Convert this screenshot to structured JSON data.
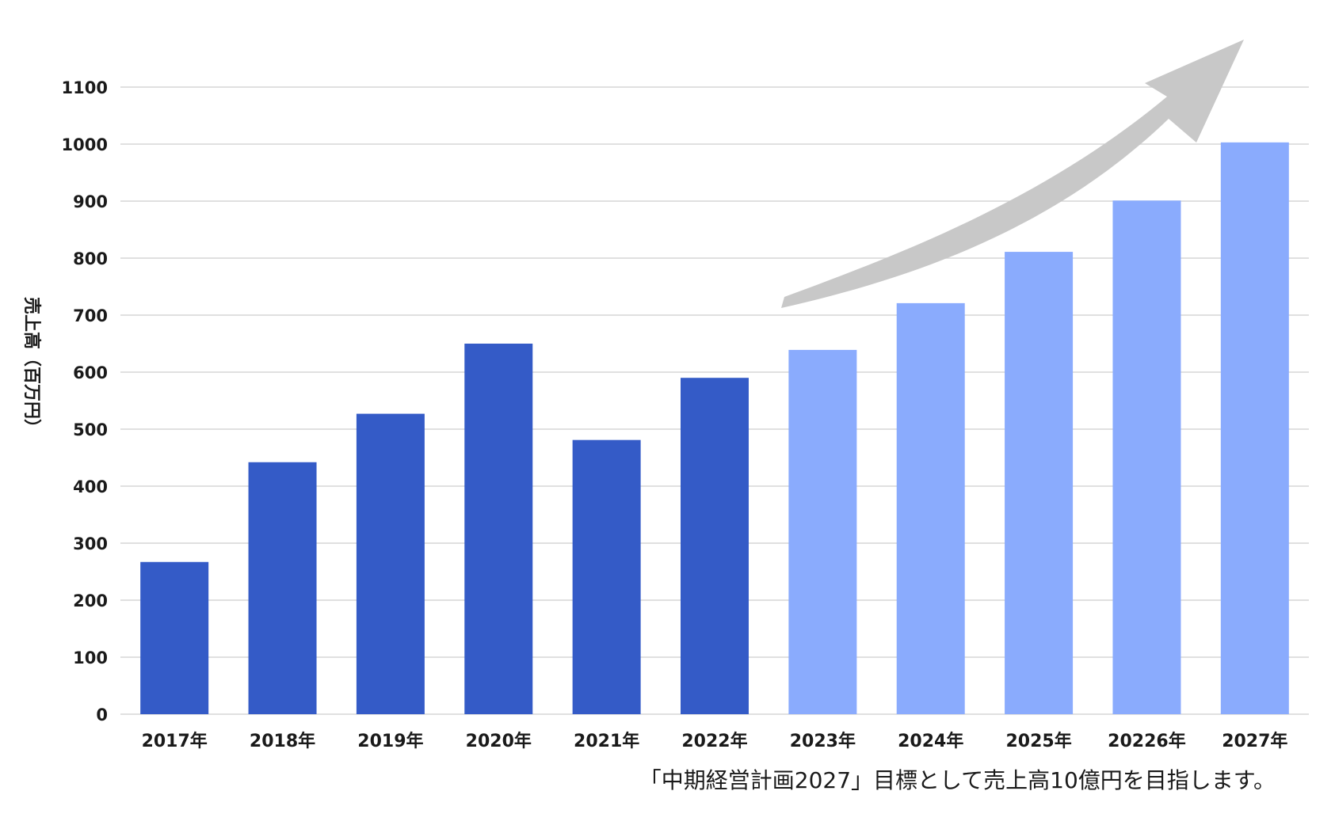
{
  "chart_data": {
    "type": "bar",
    "ylabel": "売上高（百万円）",
    "categories": [
      "2017年",
      "2018年",
      "2019年",
      "2020年",
      "2021年",
      "2022年",
      "2023年",
      "2024年",
      "2025年",
      "20226年",
      "2027年"
    ],
    "values": [
      267,
      442,
      527,
      650,
      481,
      590,
      639,
      721,
      811,
      901,
      1003
    ],
    "ylim": [
      0,
      1100
    ],
    "yticks": [
      "0",
      "100",
      "200",
      "300",
      "400",
      "500",
      "600",
      "700",
      "800",
      "900",
      "1000",
      "1100"
    ],
    "grid": true,
    "colors": {
      "actual": "#345bc7",
      "plan": "#8aabfd",
      "arrow": "#c8c8c8",
      "grid": "#d5d5d5"
    },
    "plan_from_index": 6,
    "caption": "「中期経営計画2027」目標として売上高10億円を目指します。"
  }
}
